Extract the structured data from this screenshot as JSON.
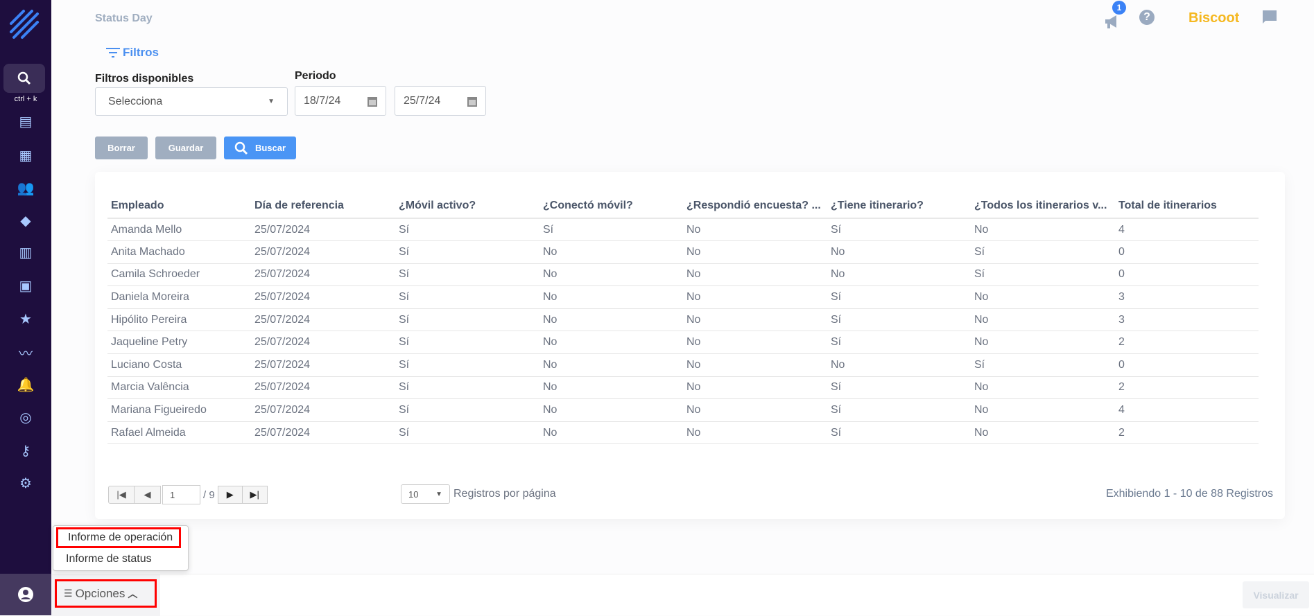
{
  "header": {
    "title": "Status Day",
    "notification_count": "1",
    "brand": "Biscoot"
  },
  "sidebar": {
    "search_shortcut": "ctrl + k",
    "items": [
      "dashboard-icon",
      "store-icon",
      "users-icon",
      "tag-icon",
      "map-icon",
      "clipboard-icon",
      "store-star-icon",
      "trend-icon",
      "bell-icon",
      "radar-icon",
      "key-icon",
      "gear-icon"
    ]
  },
  "filters": {
    "toggle_label": "Filtros",
    "available_label": "Filtros disponibles",
    "select_value": "Selecciona",
    "period_label": "Periodo",
    "date_from": "18/7/24",
    "date_to": "25/7/24",
    "clear_label": "Borrar",
    "save_label": "Guardar",
    "search_label": "Buscar"
  },
  "table": {
    "columns": [
      "Empleado",
      "Día de referencia",
      "¿Móvil activo?",
      "¿Conectó móvil?",
      "¿Respondió encuesta? ...",
      "¿Tiene itinerario?",
      "¿Todos los itinerarios v...",
      "Total de itinerarios"
    ],
    "rows": [
      [
        "Amanda Mello",
        "25/07/2024",
        "Sí",
        "Sí",
        "No",
        "Sí",
        "No",
        "4"
      ],
      [
        "Anita Machado",
        "25/07/2024",
        "Sí",
        "No",
        "No",
        "No",
        "Sí",
        "0"
      ],
      [
        "Camila Schroeder",
        "25/07/2024",
        "Sí",
        "No",
        "No",
        "No",
        "Sí",
        "0"
      ],
      [
        "Daniela Moreira",
        "25/07/2024",
        "Sí",
        "No",
        "No",
        "Sí",
        "No",
        "3"
      ],
      [
        "Hipólito Pereira",
        "25/07/2024",
        "Sí",
        "No",
        "No",
        "Sí",
        "No",
        "3"
      ],
      [
        "Jaqueline Petry",
        "25/07/2024",
        "Sí",
        "No",
        "No",
        "Sí",
        "No",
        "2"
      ],
      [
        "Luciano Costa",
        "25/07/2024",
        "Sí",
        "No",
        "No",
        "No",
        "Sí",
        "0"
      ],
      [
        "Marcia Valência",
        "25/07/2024",
        "Sí",
        "No",
        "No",
        "Sí",
        "No",
        "2"
      ],
      [
        "Mariana Figueiredo",
        "25/07/2024",
        "Sí",
        "No",
        "No",
        "Sí",
        "No",
        "4"
      ],
      [
        "Rafael Almeida",
        "25/07/2024",
        "Sí",
        "No",
        "No",
        "Sí",
        "No",
        "2"
      ]
    ]
  },
  "pagination": {
    "page": "1",
    "total_pages": "/ 9",
    "page_size": "10",
    "page_size_label": "Registros por página",
    "summary": "Exhibiendo 1 - 10 de 88 Registros"
  },
  "options_menu": {
    "label": "Opciones",
    "items": [
      "Informe de operación",
      "Informe de status"
    ]
  },
  "footer": {
    "visualize_label": "Visualizar"
  },
  "colors": {
    "sidebar": "#1e0e3e",
    "accent": "#4a8ff0",
    "brand": "#f5b820",
    "highlight": "#ff0000"
  }
}
